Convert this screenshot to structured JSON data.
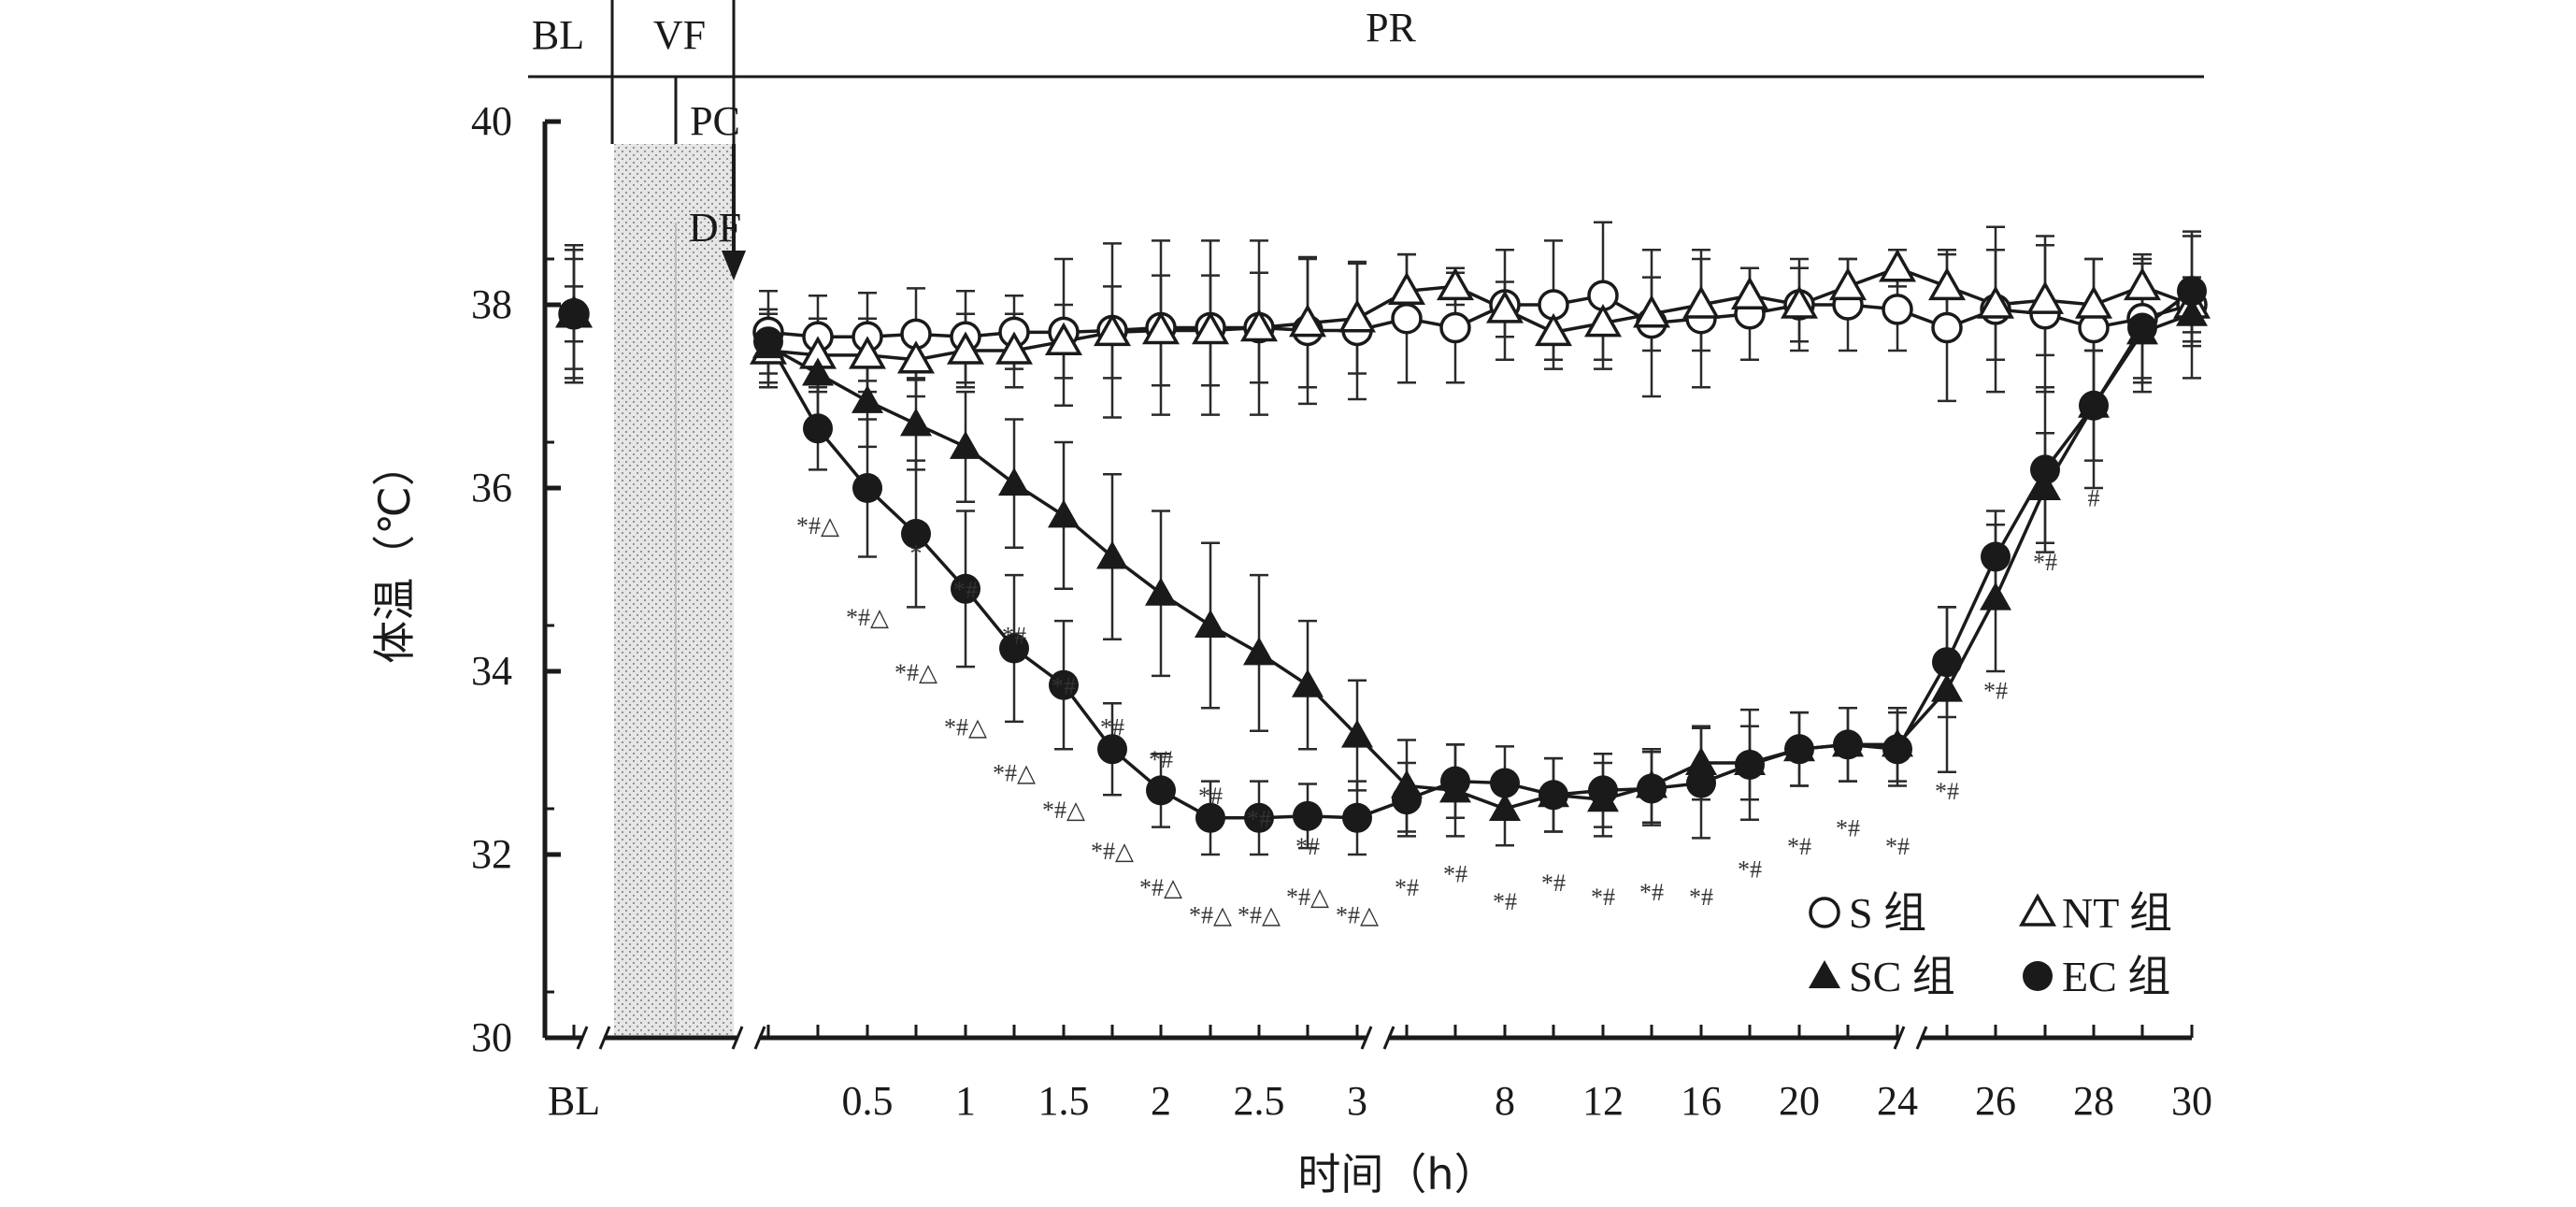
{
  "chart_data": {
    "type": "line",
    "xlabel": "时间（h）",
    "ylabel": "体温（℃）",
    "ylim": [
      30,
      40
    ],
    "yticks": [
      "30",
      "32",
      "34",
      "36",
      "38",
      "40"
    ],
    "xtick_labels": [
      "BL",
      "0.5",
      "1",
      "1.5",
      "2",
      "2.5",
      "3",
      "8",
      "12",
      "16",
      "20",
      "24",
      "26",
      "28",
      "30"
    ],
    "phases": {
      "bl": "BL",
      "vf": "VF",
      "pr": "PR",
      "pc": "PC",
      "df": "DF"
    },
    "x": [
      "BL",
      "0",
      "0.25",
      "0.5",
      "0.75",
      "1",
      "1.25",
      "1.5",
      "1.75",
      "2",
      "2.25",
      "2.5",
      "2.75",
      "3",
      "4",
      "6",
      "8",
      "10",
      "12",
      "14",
      "16",
      "18",
      "20",
      "22",
      "24",
      "25",
      "26",
      "27",
      "28",
      "29",
      "30"
    ],
    "series": [
      {
        "name": "S 组",
        "marker": "circle-open",
        "values": [
          37.9,
          37.7,
          37.65,
          37.65,
          37.68,
          37.65,
          37.7,
          37.7,
          37.72,
          37.75,
          37.75,
          37.75,
          37.72,
          37.72,
          37.85,
          37.75,
          38.0,
          38.0,
          38.1,
          37.8,
          37.85,
          37.9,
          38.0,
          38.0,
          37.95,
          37.75,
          37.95,
          37.9,
          37.75,
          37.85,
          38.0
        ],
        "errors": [
          0.75,
          0.45,
          0.45,
          0.48,
          0.5,
          0.5,
          0.4,
          0.8,
          0.95,
          0.95,
          0.95,
          0.95,
          0.8,
          0.75,
          0.7,
          0.6,
          0.6,
          0.7,
          0.8,
          0.8,
          0.75,
          0.5,
          0.5,
          0.5,
          0.45,
          0.8,
          0.9,
          0.85,
          0.75,
          0.7,
          0.8
        ]
      },
      {
        "name": "NT 组",
        "marker": "triangle-open",
        "values": [
          37.9,
          37.5,
          37.45,
          37.45,
          37.4,
          37.5,
          37.5,
          37.6,
          37.7,
          37.72,
          37.72,
          37.75,
          37.8,
          37.85,
          38.15,
          38.2,
          37.95,
          37.7,
          37.8,
          37.9,
          38.0,
          38.1,
          38.0,
          38.2,
          38.4,
          38.2,
          38.0,
          38.05,
          38.0,
          38.2,
          38.0
        ],
        "errors": [
          0.7,
          0.4,
          0.4,
          0.4,
          0.4,
          0.4,
          0.4,
          0.4,
          0.5,
          0.6,
          0.6,
          0.6,
          0.7,
          0.6,
          0.4,
          0.2,
          0.3,
          0.3,
          0.4,
          0.4,
          0.5,
          0.3,
          0.4,
          0.3,
          0.2,
          0.4,
          0.6,
          0.6,
          0.5,
          0.3,
          0.3
        ]
      },
      {
        "name": "SC 组",
        "marker": "triangle-filled",
        "values": [
          37.9,
          37.55,
          37.25,
          36.95,
          36.7,
          36.45,
          36.05,
          35.7,
          35.25,
          34.85,
          34.5,
          34.2,
          33.85,
          33.3,
          32.75,
          32.7,
          32.5,
          32.65,
          32.6,
          32.75,
          33.0,
          33.0,
          33.15,
          33.2,
          33.2,
          33.8,
          34.8,
          36.0,
          36.9,
          37.7,
          37.9
        ],
        "errors": [
          0.6,
          0.4,
          0.5,
          0.5,
          0.5,
          0.6,
          0.7,
          0.8,
          0.9,
          0.9,
          0.9,
          0.85,
          0.7,
          0.6,
          0.5,
          0.5,
          0.4,
          0.4,
          0.4,
          0.4,
          0.4,
          0.4,
          0.4,
          0.4,
          0.4,
          0.9,
          0.8,
          0.6,
          0.6,
          0.5,
          0.3
        ]
      },
      {
        "name": "EC 组",
        "marker": "circle-filled",
        "values": [
          37.9,
          37.6,
          36.65,
          36.0,
          35.5,
          34.9,
          34.25,
          33.85,
          33.15,
          32.7,
          32.4,
          32.4,
          32.42,
          32.4,
          32.6,
          32.8,
          32.78,
          32.65,
          32.7,
          32.72,
          32.78,
          32.98,
          33.15,
          33.2,
          33.15,
          34.1,
          35.25,
          36.2,
          36.9,
          37.75,
          38.15
        ],
        "errors": [
          0.3,
          0.2,
          0.45,
          0.75,
          0.8,
          0.85,
          0.8,
          0.7,
          0.5,
          0.4,
          0.4,
          0.4,
          0.35,
          0.4,
          0.4,
          0.4,
          0.4,
          0.4,
          0.4,
          0.4,
          0.6,
          0.6,
          0.4,
          0.4,
          0.4,
          0.6,
          0.5,
          0.9,
          0.9,
          0.7,
          0.6
        ]
      }
    ],
    "annotations": [
      {
        "text": "*#△",
        "x": "0.25",
        "y": 35.5
      },
      {
        "text": "*",
        "x": "0.75",
        "y": 35.2
      },
      {
        "text": "*#△",
        "x": "0.5",
        "y": 34.5
      },
      {
        "text": "*#",
        "x": "1",
        "y": 34.8
      },
      {
        "text": "*#△",
        "x": "0.75",
        "y": 33.9
      },
      {
        "text": "*#",
        "x": "1.25",
        "y": 34.3
      },
      {
        "text": "*#△",
        "x": "1",
        "y": 33.3
      },
      {
        "text": "*#",
        "x": "1.5",
        "y": 33.75
      },
      {
        "text": "*#△",
        "x": "1.25",
        "y": 32.8
      },
      {
        "text": "*#",
        "x": "1.75",
        "y": 33.3
      },
      {
        "text": "*#△",
        "x": "1.5",
        "y": 32.4
      },
      {
        "text": "*#",
        "x": "2",
        "y": 32.95
      },
      {
        "text": "*#△",
        "x": "1.75",
        "y": 31.95
      },
      {
        "text": "*#",
        "x": "2.25",
        "y": 32.55
      },
      {
        "text": "*#△",
        "x": "2",
        "y": 31.55
      },
      {
        "text": "*#",
        "x": "2.5",
        "y": 32.3
      },
      {
        "text": "*#△",
        "x": "2.25",
        "y": 31.25
      },
      {
        "text": "*#△",
        "x": "2.5",
        "y": 31.25
      },
      {
        "text": "*#",
        "x": "2.75",
        "y": 32.0
      },
      {
        "text": "*#△",
        "x": "2.75",
        "y": 31.45
      },
      {
        "text": "*#△",
        "x": "3",
        "y": 31.25
      },
      {
        "text": "*#",
        "x": "4",
        "y": 31.55
      },
      {
        "text": "*#",
        "x": "6",
        "y": 31.7
      },
      {
        "text": "*#",
        "x": "8",
        "y": 31.4
      },
      {
        "text": "*#",
        "x": "10",
        "y": 31.6
      },
      {
        "text": "*#",
        "x": "12",
        "y": 31.45
      },
      {
        "text": "*#",
        "x": "14",
        "y": 31.5
      },
      {
        "text": "*#",
        "x": "16",
        "y": 31.45
      },
      {
        "text": "*#",
        "x": "18",
        "y": 31.75
      },
      {
        "text": "*#",
        "x": "20",
        "y": 32.0
      },
      {
        "text": "*#",
        "x": "22",
        "y": 32.2
      },
      {
        "text": "*#",
        "x": "24",
        "y": 32.0
      },
      {
        "text": "*#",
        "x": "25",
        "y": 32.6
      },
      {
        "text": "*#",
        "x": "26",
        "y": 33.7
      },
      {
        "text": "*#",
        "x": "27",
        "y": 35.1
      },
      {
        "text": "#",
        "x": "28",
        "y": 35.8
      }
    ],
    "legend": {
      "position": "bottom-right"
    }
  }
}
